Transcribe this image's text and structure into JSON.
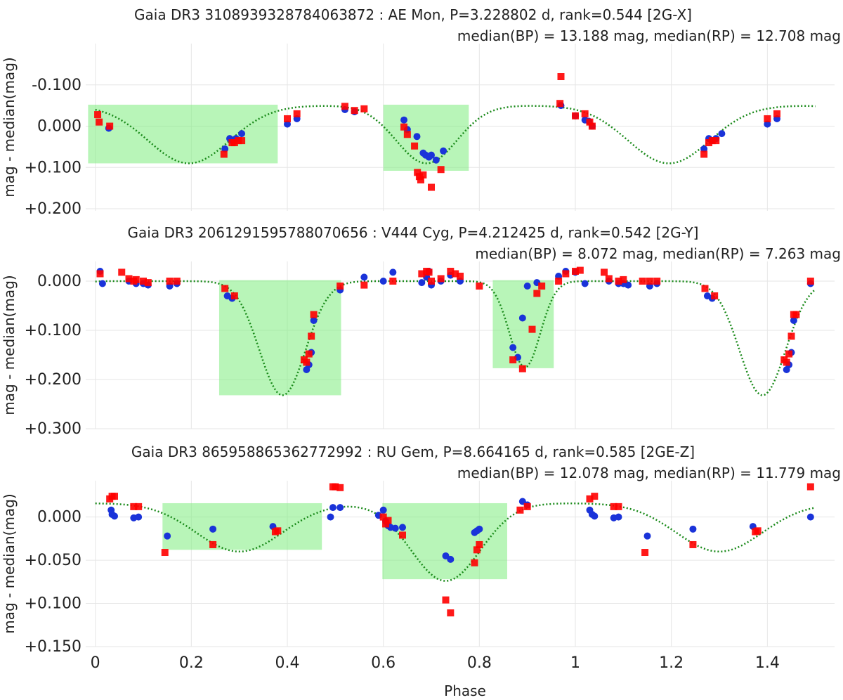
{
  "colors": {
    "bp": "#1a33d9",
    "rp": "#ff0000",
    "model": "#1a8a1a",
    "highlight": "#7dec7d",
    "grid": "#e6e6e6",
    "text": "#222222"
  },
  "xaxis": {
    "label": "Phase",
    "ticks": [
      0,
      0.2,
      0.4,
      0.6,
      0.8,
      1,
      1.2,
      1.4
    ],
    "tick_labels": [
      "0",
      "0.2",
      "0.4",
      "0.6",
      "0.8",
      "1",
      "1.2",
      "1.4"
    ],
    "range": [
      -0.02,
      1.54
    ]
  },
  "chart_data": [
    {
      "type": "scatter",
      "title": "Gaia DR3 3108939328784063872 : AE Mon, P=3.228802 d, rank=0.544 [2G-X]",
      "subtitle": "median(BP) = 13.188 mag, median(RP) = 12.708 mag",
      "ylabel": "mag - median(mag)",
      "ylim": [
        -0.2,
        0.205
      ],
      "y_reversed": true,
      "yticks": [
        -0.1,
        0,
        0.1,
        0.2
      ],
      "ytick_labels": [
        "-0.100",
        "0.000",
        "+0.100",
        "+0.200"
      ],
      "model": {
        "base": -0.05,
        "depth1": 0.14,
        "center1": 0.195,
        "width1": 0.085,
        "depth2": 0.14,
        "center2": 0.69,
        "width2": 0.063,
        "period": 1.0
      },
      "highlights": [
        {
          "x0": -0.015,
          "x1": 0.38,
          "y0": -0.052,
          "y1": 0.09
        },
        {
          "x0": 0.6,
          "x1": 0.778,
          "y0": -0.052,
          "y1": 0.108
        }
      ],
      "series": [
        {
          "name": "BP",
          "marker": "circle",
          "x": [
            0.028,
            0.27,
            0.28,
            0.285,
            0.293,
            0.305,
            0.4,
            0.42,
            0.52,
            0.54,
            0.643,
            0.65,
            0.67,
            0.683,
            0.688,
            0.695,
            0.7,
            0.71,
            0.725,
            0.97,
            1.0,
            1.02,
            1.028,
            1.035,
            1.268,
            1.278,
            1.285,
            1.293,
            1.305,
            1.4,
            1.42
          ],
          "y": [
            0.005,
            0.055,
            0.03,
            0.035,
            0.03,
            0.018,
            -0.005,
            -0.018,
            -0.04,
            -0.035,
            -0.015,
            0.008,
            0.025,
            0.065,
            0.07,
            0.075,
            0.07,
            0.082,
            0.06,
            -0.05,
            -0.025,
            -0.015,
            -0.012,
            0.0,
            0.055,
            0.03,
            0.035,
            0.03,
            0.018,
            -0.005,
            -0.018
          ]
        },
        {
          "name": "RP",
          "marker": "square",
          "x": [
            0.005,
            0.008,
            0.03,
            0.268,
            0.285,
            0.29,
            0.298,
            0.305,
            0.4,
            0.42,
            0.52,
            0.54,
            0.56,
            0.643,
            0.65,
            0.665,
            0.671,
            0.675,
            0.678,
            0.683,
            0.7,
            0.72,
            0.97,
            0.968,
            1.0,
            1.02,
            1.03,
            1.035,
            1.268,
            1.278,
            1.285,
            1.293,
            1.4,
            1.42
          ],
          "y": [
            -0.028,
            -0.01,
            0.0,
            0.068,
            0.04,
            0.04,
            0.035,
            0.035,
            -0.018,
            -0.03,
            -0.048,
            -0.038,
            -0.042,
            0.002,
            0.02,
            0.048,
            0.112,
            0.122,
            0.13,
            0.118,
            0.148,
            0.105,
            -0.12,
            -0.055,
            -0.025,
            -0.03,
            -0.01,
            0.0,
            0.068,
            0.04,
            0.035,
            0.035,
            -0.018,
            -0.03
          ]
        }
      ]
    },
    {
      "type": "scatter",
      "title": "Gaia DR3 2061291595788070656 : V444 Cyg, P=4.212425 d, rank=0.542 [2G-Y]",
      "subtitle": "median(BP) = 8.072 mag, median(RP) = 7.263 mag",
      "ylabel": "mag - median(mag)",
      "ylim": [
        -0.04,
        0.3
      ],
      "y_reversed": true,
      "yticks": [
        0,
        0.1,
        0.2,
        0.3
      ],
      "ytick_labels": [
        "0.000",
        "+0.100",
        "+0.200",
        "+0.300"
      ],
      "model": {
        "base": 0.0,
        "depth1": 0.232,
        "center1": 0.39,
        "width1": 0.048,
        "depth2": 0.175,
        "center2": 0.895,
        "width2": 0.032,
        "period": 1.0
      },
      "highlights": [
        {
          "x0": 0.258,
          "x1": 0.512,
          "y0": -0.002,
          "y1": 0.232
        },
        {
          "x0": 0.828,
          "x1": 0.955,
          "y0": -0.002,
          "y1": 0.177
        }
      ],
      "series": [
        {
          "name": "BP",
          "marker": "circle",
          "x": [
            0.01,
            0.015,
            0.07,
            0.085,
            0.1,
            0.11,
            0.155,
            0.17,
            0.275,
            0.285,
            0.44,
            0.445,
            0.45,
            0.455,
            0.51,
            0.56,
            0.6,
            0.62,
            0.68,
            0.69,
            0.695,
            0.7,
            0.72,
            0.74,
            0.76,
            0.87,
            0.88,
            0.89,
            0.9,
            0.92,
            0.965,
            0.98,
            1.0,
            1.02,
            1.07,
            1.09,
            1.1,
            1.11,
            1.155,
            1.17,
            1.275,
            1.285,
            1.44,
            1.445,
            1.45,
            1.455,
            1.49
          ],
          "y": [
            -0.02,
            0.005,
            0.0,
            0.005,
            0.005,
            0.008,
            0.01,
            0.005,
            0.03,
            0.035,
            0.18,
            0.17,
            0.145,
            0.08,
            0.018,
            -0.008,
            0.0,
            -0.018,
            0.003,
            -0.008,
            -0.02,
            0.008,
            0.0,
            -0.012,
            0.0,
            0.135,
            0.155,
            0.075,
            0.01,
            0.003,
            -0.01,
            -0.02,
            -0.018,
            0.005,
            0.0,
            0.005,
            0.005,
            0.008,
            0.01,
            0.005,
            0.03,
            0.035,
            0.18,
            0.17,
            0.145,
            0.08,
            0.005
          ]
        },
        {
          "name": "RP",
          "marker": "square",
          "x": [
            0.01,
            0.055,
            0.07,
            0.08,
            0.085,
            0.1,
            0.11,
            0.155,
            0.17,
            0.27,
            0.29,
            0.435,
            0.44,
            0.445,
            0.45,
            0.455,
            0.51,
            0.56,
            0.62,
            0.68,
            0.69,
            0.695,
            0.7,
            0.72,
            0.74,
            0.75,
            0.76,
            0.8,
            0.87,
            0.89,
            0.91,
            0.92,
            0.93,
            0.965,
            0.98,
            1.0,
            1.01,
            1.06,
            1.07,
            1.09,
            1.1,
            1.14,
            1.155,
            1.17,
            1.27,
            1.29,
            1.435,
            1.44,
            1.445,
            1.45,
            1.455,
            1.46,
            1.49
          ],
          "y": [
            -0.015,
            -0.018,
            -0.005,
            0.0,
            -0.003,
            0.0,
            0.003,
            0.0,
            0.0,
            0.015,
            0.03,
            0.16,
            0.165,
            0.148,
            0.112,
            0.068,
            0.01,
            0.008,
            0.0,
            -0.015,
            -0.02,
            -0.018,
            0.0,
            -0.005,
            -0.02,
            -0.015,
            -0.01,
            0.01,
            0.16,
            0.178,
            0.098,
            0.025,
            0.01,
            0.0,
            -0.015,
            -0.02,
            -0.022,
            -0.018,
            -0.005,
            0.0,
            -0.003,
            0.0,
            0.0,
            0.0,
            0.015,
            0.03,
            0.16,
            0.165,
            0.148,
            0.112,
            0.068,
            0.068,
            0.0
          ]
        }
      ]
    },
    {
      "type": "scatter",
      "title": "Gaia DR3 865958865362772992 : RU Gem, P=8.664165 d, rank=0.585 [2GE-Z]",
      "subtitle": "median(BP) = 12.078 mag, median(RP) = 11.779 mag",
      "ylabel": "mag - median(mag)",
      "ylim": [
        -0.042,
        0.15
      ],
      "y_reversed": true,
      "yticks": [
        0,
        0.05,
        0.1,
        0.15
      ],
      "ytick_labels": [
        "0.000",
        "+0.050",
        "+0.100",
        "+0.150"
      ],
      "model": {
        "base": -0.016,
        "depth1": 0.056,
        "center1": 0.3,
        "width1": 0.09,
        "depth2": 0.09,
        "center2": 0.73,
        "width2": 0.072,
        "period": 1.0
      },
      "highlights": [
        {
          "x0": 0.14,
          "x1": 0.472,
          "y0": -0.016,
          "y1": 0.038
        },
        {
          "x0": 0.598,
          "x1": 0.858,
          "y0": -0.016,
          "y1": 0.072
        }
      ],
      "series": [
        {
          "name": "BP",
          "marker": "circle",
          "x": [
            0.033,
            0.035,
            0.04,
            0.08,
            0.09,
            0.15,
            0.245,
            0.37,
            0.49,
            0.495,
            0.51,
            0.59,
            0.6,
            0.605,
            0.61,
            0.615,
            0.625,
            0.64,
            0.73,
            0.74,
            0.79,
            0.795,
            0.8,
            0.89,
            0.9,
            1.03,
            1.035,
            1.04,
            1.08,
            1.09,
            1.15,
            1.245,
            1.37,
            1.49
          ],
          "y": [
            -0.008,
            -0.003,
            -0.001,
            0.001,
            0.0,
            0.022,
            0.014,
            0.011,
            0.0,
            -0.011,
            -0.011,
            -0.002,
            -0.008,
            0.005,
            0.01,
            0.012,
            0.013,
            0.012,
            0.045,
            0.049,
            0.018,
            0.016,
            0.014,
            -0.018,
            -0.014,
            -0.008,
            -0.003,
            -0.001,
            0.001,
            0.0,
            0.022,
            0.014,
            0.011,
            0.0
          ]
        },
        {
          "name": "RP",
          "marker": "square",
          "x": [
            0.03,
            0.035,
            0.04,
            0.08,
            0.09,
            0.145,
            0.245,
            0.375,
            0.38,
            0.495,
            0.5,
            0.51,
            0.6,
            0.605,
            0.61,
            0.64,
            0.73,
            0.74,
            0.79,
            0.795,
            0.8,
            0.885,
            0.9,
            1.03,
            1.04,
            1.08,
            1.09,
            1.145,
            1.245,
            1.375,
            1.38,
            1.49
          ],
          "y": [
            -0.021,
            -0.024,
            -0.024,
            -0.012,
            -0.012,
            0.041,
            0.032,
            0.017,
            0.016,
            -0.035,
            -0.035,
            -0.034,
            0.0,
            0.008,
            0.004,
            0.021,
            0.096,
            0.111,
            0.053,
            0.038,
            0.032,
            -0.008,
            -0.012,
            -0.021,
            -0.024,
            -0.012,
            -0.012,
            0.041,
            0.032,
            0.017,
            0.016,
            -0.035
          ]
        }
      ]
    }
  ]
}
